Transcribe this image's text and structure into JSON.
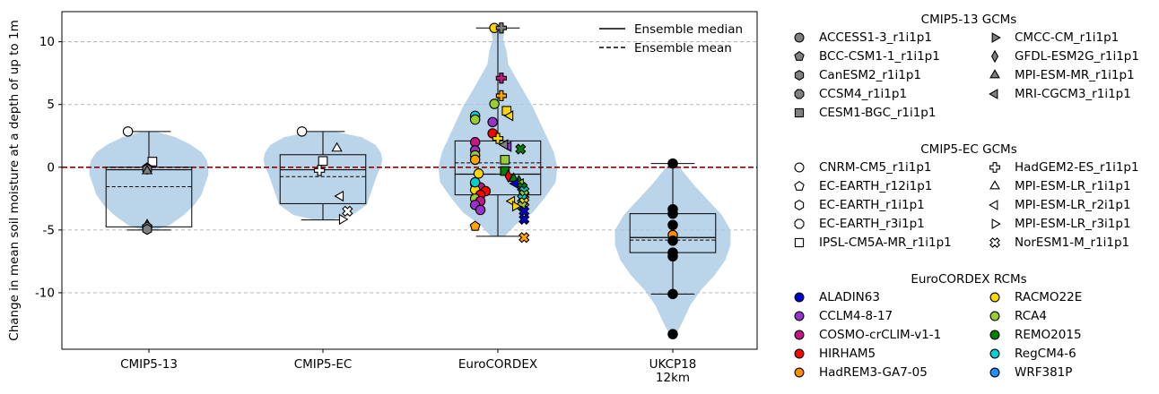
{
  "chart_data": {
    "type": "violin-box-scatter",
    "ylabel": "Change in mean soil moisture at a depth of up to 1m",
    "ylim": [
      -14.5,
      12.4
    ],
    "yticks": [
      -10,
      -5,
      0,
      5,
      10
    ],
    "grid": "y dashed",
    "categories": [
      {
        "lines": [
          "CMIP5-13"
        ]
      },
      {
        "lines": [
          "CMIP5-EC"
        ]
      },
      {
        "lines": [
          "EuroCORDEX"
        ]
      },
      {
        "lines": [
          "UKCP18",
          "12km"
        ]
      }
    ],
    "line_legend": [
      {
        "label": "Ensemble median",
        "style": "solid"
      },
      {
        "label": "Ensemble mean",
        "style": "dashed"
      }
    ],
    "groups": [
      {
        "category": "CMIP5-13",
        "box": {
          "q1": -4.75,
          "median": -0.2,
          "q3": 0.0,
          "whisker_low": -5.0,
          "whisker_high": 2.85
        },
        "mean": -1.55,
        "violin": {
          "y": [
            -5.0,
            -4.6,
            -3.8,
            -3.0,
            -2.2,
            -1.4,
            -0.6,
            0.0,
            0.6,
            1.2,
            1.8,
            2.4,
            2.8
          ],
          "w": [
            0.04,
            0.12,
            0.2,
            0.26,
            0.3,
            0.32,
            0.34,
            0.34,
            0.33,
            0.3,
            0.24,
            0.15,
            0.05
          ]
        },
        "points": [
          {
            "x": -0.12,
            "y": 2.85,
            "marker": "circle",
            "color": "#ffffff"
          },
          {
            "x": 0.02,
            "y": 0.45,
            "marker": "square",
            "color": "#ffffff"
          },
          {
            "x": -0.01,
            "y": -0.05,
            "marker": "pentagon",
            "color": "#808080"
          },
          {
            "x": -0.01,
            "y": -0.15,
            "marker": "hexagon",
            "color": "#808080"
          },
          {
            "x": -0.01,
            "y": -0.3,
            "marker": "triangle-up",
            "color": "#808080"
          },
          {
            "x": -0.01,
            "y": -4.6,
            "marker": "triangle-up",
            "color": "#808080"
          },
          {
            "x": -0.01,
            "y": -4.75,
            "marker": "pentagon",
            "color": "#808080"
          },
          {
            "x": -0.01,
            "y": -4.95,
            "marker": "hexagon",
            "color": "#808080"
          }
        ]
      },
      {
        "category": "CMIP5-EC",
        "box": {
          "q1": -2.9,
          "median": -0.2,
          "q3": 1.0,
          "whisker_low": -4.2,
          "whisker_high": 2.85
        },
        "mean": -0.75,
        "violin": {
          "y": [
            -4.2,
            -3.8,
            -3.0,
            -2.2,
            -1.4,
            -0.6,
            0.0,
            0.6,
            1.2,
            1.8,
            2.4,
            2.8
          ],
          "w": [
            0.05,
            0.17,
            0.25,
            0.27,
            0.29,
            0.31,
            0.33,
            0.34,
            0.33,
            0.3,
            0.22,
            0.08
          ]
        },
        "points": [
          {
            "x": -0.12,
            "y": 2.85,
            "marker": "circle",
            "color": "#ffffff"
          },
          {
            "x": 0.08,
            "y": 1.5,
            "marker": "triangle-up",
            "color": "#ffffff"
          },
          {
            "x": 0.0,
            "y": 0.5,
            "marker": "square",
            "color": "#ffffff"
          },
          {
            "x": -0.02,
            "y": -0.25,
            "marker": "plus",
            "color": "#ffffff"
          },
          {
            "x": 0.1,
            "y": -2.3,
            "marker": "triangle-left",
            "color": "#ffffff"
          },
          {
            "x": 0.14,
            "y": -3.5,
            "marker": "x",
            "color": "#ffffff"
          },
          {
            "x": 0.11,
            "y": -4.15,
            "marker": "triangle-right",
            "color": "#ffffff"
          }
        ]
      },
      {
        "category": "EuroCORDEX",
        "box": {
          "q1": -2.2,
          "median": -0.55,
          "q3": 2.1,
          "whisker_low": -5.5,
          "whisker_high": 11.1
        },
        "mean": 0.35,
        "violin": {
          "y": [
            -5.5,
            -4.6,
            -3.6,
            -2.4,
            -1.2,
            0.0,
            1.2,
            2.4,
            3.6,
            4.8,
            6.0,
            7.2,
            8.2,
            9.2,
            10.2,
            11.1
          ],
          "w": [
            0.04,
            0.1,
            0.2,
            0.27,
            0.33,
            0.34,
            0.32,
            0.28,
            0.24,
            0.2,
            0.15,
            0.1,
            0.06,
            0.05,
            0.03,
            0.04
          ]
        },
        "points": [
          {
            "x": -0.02,
            "y": 11.1,
            "marker": "circle",
            "color": "#ffd700"
          },
          {
            "x": 0.02,
            "y": 11.1,
            "marker": "plus",
            "color": "#808080"
          },
          {
            "x": 0.02,
            "y": 7.1,
            "marker": "plus",
            "color": "#c71585"
          },
          {
            "x": 0.02,
            "y": 5.7,
            "marker": "plus",
            "color": "#ffa500"
          },
          {
            "x": -0.02,
            "y": 5.05,
            "marker": "circle",
            "color": "#9acd32"
          },
          {
            "x": 0.05,
            "y": 4.5,
            "marker": "square",
            "color": "#ffd700"
          },
          {
            "x": 0.07,
            "y": 4.1,
            "marker": "triangle-left",
            "color": "#ffd700"
          },
          {
            "x": -0.13,
            "y": 4.1,
            "marker": "circle",
            "color": "#00ced1"
          },
          {
            "x": -0.13,
            "y": 3.8,
            "marker": "circle",
            "color": "#9acd32"
          },
          {
            "x": -0.03,
            "y": 3.6,
            "marker": "circle",
            "color": "#9932cc"
          },
          {
            "x": -0.03,
            "y": 2.7,
            "marker": "circle",
            "color": "#ff0000"
          },
          {
            "x": 0.0,
            "y": 2.3,
            "marker": "plus",
            "color": "#ffd700"
          },
          {
            "x": 0.04,
            "y": 1.8,
            "marker": "triangle-left",
            "color": "#9932cc"
          },
          {
            "x": 0.06,
            "y": 1.65,
            "marker": "triangle-left",
            "color": "#9932cc"
          },
          {
            "x": -0.13,
            "y": 2.0,
            "marker": "circle",
            "color": "#c71585"
          },
          {
            "x": -0.13,
            "y": 1.35,
            "marker": "circle",
            "color": "#9932cc"
          },
          {
            "x": -0.13,
            "y": 0.95,
            "marker": "circle",
            "color": "#9acd32"
          },
          {
            "x": -0.13,
            "y": 0.6,
            "marker": "circle",
            "color": "#ffa500"
          },
          {
            "x": 0.04,
            "y": 0.6,
            "marker": "square",
            "color": "#9acd32"
          },
          {
            "x": 0.04,
            "y": -0.3,
            "marker": "square",
            "color": "#008000"
          },
          {
            "x": -0.11,
            "y": -0.5,
            "marker": "circle",
            "color": "#ffd700"
          },
          {
            "x": 0.06,
            "y": -0.7,
            "marker": "diamond",
            "color": "#ff0000"
          },
          {
            "x": 0.09,
            "y": -0.9,
            "marker": "triangle-up",
            "color": "#008000"
          },
          {
            "x": 0.12,
            "y": -1.1,
            "marker": "triangle-up",
            "color": "#008000"
          },
          {
            "x": 0.13,
            "y": -1.3,
            "marker": "triangle-left",
            "color": "#9acd32"
          },
          {
            "x": 0.1,
            "y": -1.3,
            "marker": "triangle-left",
            "color": "#0000cd"
          },
          {
            "x": 0.14,
            "y": -1.6,
            "marker": "x",
            "color": "#008000"
          },
          {
            "x": 0.15,
            "y": -1.9,
            "marker": "x",
            "color": "#00ced1"
          },
          {
            "x": 0.15,
            "y": -2.2,
            "marker": "x",
            "color": "#9acd32"
          },
          {
            "x": 0.14,
            "y": -2.5,
            "marker": "x",
            "color": "#00ced1"
          },
          {
            "x": 0.15,
            "y": -2.8,
            "marker": "x",
            "color": "#ffd700"
          },
          {
            "x": 0.14,
            "y": -3.1,
            "marker": "x",
            "color": "#9acd32"
          },
          {
            "x": 0.15,
            "y": -3.5,
            "marker": "x",
            "color": "#0000cd"
          },
          {
            "x": 0.15,
            "y": -4.15,
            "marker": "x",
            "color": "#0000cd"
          },
          {
            "x": 0.15,
            "y": -5.6,
            "marker": "x",
            "color": "#ffa500"
          },
          {
            "x": 0.13,
            "y": 1.45,
            "marker": "x",
            "color": "#008000"
          },
          {
            "x": -0.13,
            "y": -1.3,
            "marker": "circle",
            "color": "#0000cd"
          },
          {
            "x": -0.1,
            "y": -1.6,
            "marker": "circle",
            "color": "#c71585"
          },
          {
            "x": -0.13,
            "y": -1.8,
            "marker": "circle",
            "color": "#ffd700"
          },
          {
            "x": -0.07,
            "y": -1.9,
            "marker": "circle",
            "color": "#ff0000"
          },
          {
            "x": -0.1,
            "y": -2.2,
            "marker": "circle",
            "color": "#ff0000"
          },
          {
            "x": -0.13,
            "y": -2.5,
            "marker": "circle",
            "color": "#9acd32"
          },
          {
            "x": -0.1,
            "y": -2.7,
            "marker": "circle",
            "color": "#c71585"
          },
          {
            "x": -0.13,
            "y": -3.0,
            "marker": "circle",
            "color": "#9932cc"
          },
          {
            "x": -0.1,
            "y": -3.4,
            "marker": "circle",
            "color": "#9932cc"
          },
          {
            "x": -0.13,
            "y": -1.2,
            "marker": "circle",
            "color": "#00ced1"
          },
          {
            "x": 0.08,
            "y": -2.7,
            "marker": "triangle-left",
            "color": "#ffd700"
          },
          {
            "x": 0.1,
            "y": -3.1,
            "marker": "triangle-right",
            "color": "#ffd700"
          },
          {
            "x": -0.13,
            "y": -4.7,
            "marker": "pentagon",
            "color": "#ffa500"
          },
          {
            "x": 0.04,
            "y": 1.8,
            "marker": "triangle-left",
            "color": "#808080"
          }
        ]
      },
      {
        "category": "UKCP18 12km",
        "box": {
          "q1": -6.8,
          "median": -5.6,
          "q3": -3.7,
          "whisker_low": -10.1,
          "whisker_high": 0.3
        },
        "mean": -5.8,
        "violin": {
          "y": [
            -13.3,
            -12.2,
            -11.0,
            -9.8,
            -8.6,
            -7.4,
            -6.2,
            -5.0,
            -3.8,
            -2.6,
            -1.4,
            -0.2,
            0.3
          ],
          "w": [
            0.02,
            0.06,
            0.1,
            0.16,
            0.24,
            0.3,
            0.33,
            0.33,
            0.28,
            0.2,
            0.12,
            0.05,
            0.02
          ]
        },
        "points": [
          {
            "x": 0.0,
            "y": 0.3,
            "marker": "circle",
            "color": "#000000"
          },
          {
            "x": 0.0,
            "y": -3.35,
            "marker": "circle",
            "color": "#000000"
          },
          {
            "x": 0.0,
            "y": -3.7,
            "marker": "circle",
            "color": "#000000"
          },
          {
            "x": 0.0,
            "y": -4.6,
            "marker": "circle",
            "color": "#000000"
          },
          {
            "x": 0.0,
            "y": -5.4,
            "marker": "circle",
            "color": "#ff8c00"
          },
          {
            "x": 0.0,
            "y": -5.85,
            "marker": "circle",
            "color": "#000000"
          },
          {
            "x": 0.0,
            "y": -6.8,
            "marker": "circle",
            "color": "#000000"
          },
          {
            "x": 0.0,
            "y": -7.1,
            "marker": "circle",
            "color": "#000000"
          },
          {
            "x": 0.0,
            "y": -10.1,
            "marker": "circle",
            "color": "#000000"
          },
          {
            "x": 0.0,
            "y": -13.3,
            "marker": "circle",
            "color": "#000000"
          }
        ]
      }
    ]
  },
  "legend": {
    "cmip13": {
      "title": "CMIP5-13 GCMs",
      "items": [
        {
          "label": "ACCESS1-3_r1i1p1",
          "marker": "circle",
          "color": "#808080"
        },
        {
          "label": "BCC-CSM1-1_r1i1p1",
          "marker": "pentagon",
          "color": "#808080"
        },
        {
          "label": "CanESM2_r1i1p1",
          "marker": "hexagon",
          "color": "#808080"
        },
        {
          "label": "CCSM4_r1i1p1",
          "marker": "octagon",
          "color": "#808080"
        },
        {
          "label": "CESM1-BGC_r1i1p1",
          "marker": "square",
          "color": "#808080"
        },
        {
          "label": "CMCC-CM_r1i1p1",
          "marker": "triangle-right",
          "color": "#808080"
        },
        {
          "label": "GFDL-ESM2G_r1i1p1",
          "marker": "diamond",
          "color": "#808080"
        },
        {
          "label": "MPI-ESM-MR_r1i1p1",
          "marker": "triangle-up",
          "color": "#808080"
        },
        {
          "label": "MRI-CGCM3_r1i1p1",
          "marker": "triangle-left",
          "color": "#808080"
        }
      ]
    },
    "cmipec": {
      "title": "CMIP5-EC GCMs",
      "items": [
        {
          "label": "CNRM-CM5_r1i1p1",
          "marker": "circle",
          "color": "#ffffff"
        },
        {
          "label": "EC-EARTH_r12i1p1",
          "marker": "pentagon",
          "color": "#ffffff"
        },
        {
          "label": "EC-EARTH_r1i1p1",
          "marker": "hexagon",
          "color": "#ffffff"
        },
        {
          "label": "EC-EARTH_r3i1p1",
          "marker": "octagon",
          "color": "#ffffff"
        },
        {
          "label": "IPSL-CM5A-MR_r1i1p1",
          "marker": "square",
          "color": "#ffffff"
        },
        {
          "label": "HadGEM2-ES_r1i1p1",
          "marker": "plus",
          "color": "#ffffff"
        },
        {
          "label": "MPI-ESM-LR_r1i1p1",
          "marker": "triangle-up",
          "color": "#ffffff"
        },
        {
          "label": "MPI-ESM-LR_r2i1p1",
          "marker": "triangle-left",
          "color": "#ffffff"
        },
        {
          "label": "MPI-ESM-LR_r3i1p1",
          "marker": "triangle-right",
          "color": "#ffffff"
        },
        {
          "label": "NorESM1-M_r1i1p1",
          "marker": "x",
          "color": "#ffffff"
        }
      ]
    },
    "rcm": {
      "title": "EuroCORDEX RCMs",
      "items": [
        {
          "label": "ALADIN63",
          "marker": "circle",
          "color": "#0000cd"
        },
        {
          "label": "CCLM4-8-17",
          "marker": "circle",
          "color": "#9932cc"
        },
        {
          "label": "COSMO-crCLIM-v1-1",
          "marker": "circle",
          "color": "#c71585"
        },
        {
          "label": "HIRHAM5",
          "marker": "circle",
          "color": "#ff0000"
        },
        {
          "label": "HadREM3-GA7-05",
          "marker": "circle",
          "color": "#ff8c00"
        },
        {
          "label": "RACMO22E",
          "marker": "circle",
          "color": "#ffd700"
        },
        {
          "label": "RCA4",
          "marker": "circle",
          "color": "#9acd32"
        },
        {
          "label": "REMO2015",
          "marker": "circle",
          "color": "#008000"
        },
        {
          "label": "RegCM4-6",
          "marker": "circle",
          "color": "#00ced1"
        },
        {
          "label": "WRF381P",
          "marker": "circle",
          "color": "#1e90ff"
        }
      ]
    }
  },
  "colors": {
    "violin": "#a6c8e3",
    "zero_line": "#8b0000",
    "grid": "#b0b0b0"
  }
}
